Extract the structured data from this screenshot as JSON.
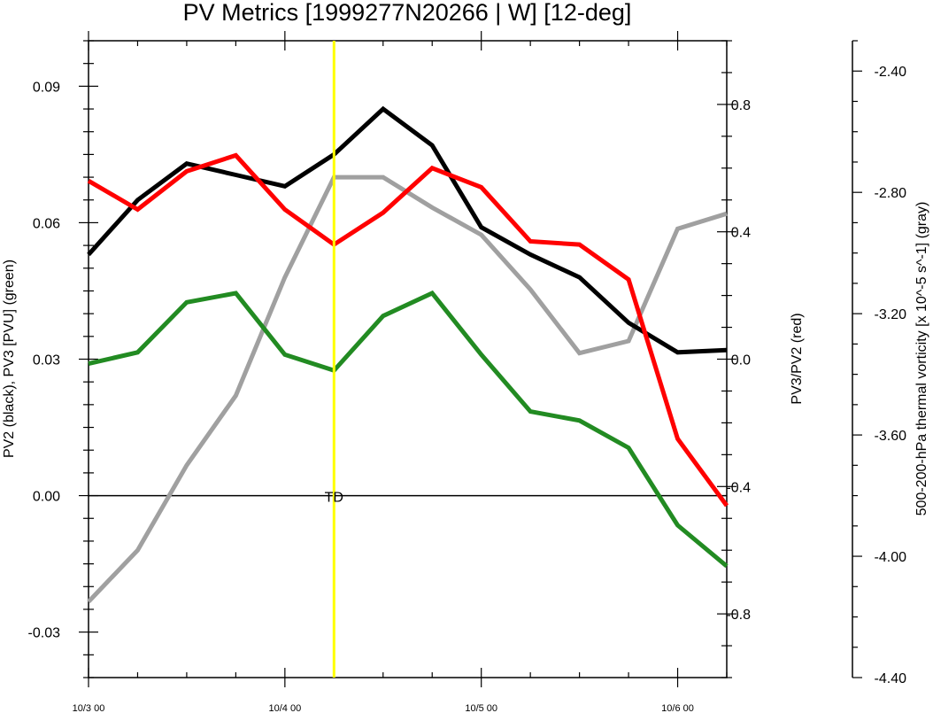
{
  "chart_data": {
    "type": "line",
    "title": "PV Metrics [1999277N20266 | W] [12-deg]",
    "x": {
      "ticks": [
        "10/3 00",
        "10/4 00",
        "10/5 00",
        "10/6 00"
      ],
      "unit_note": "6-hourly steps; 0 = 10/3 00, 4 = 10/4 00, 8 = 10/5 00, 12 = 10/6 00",
      "range": [
        0,
        13
      ]
    },
    "left_axis": {
      "label": "PV2 (black), PV3 [PVU] (green)",
      "range": [
        -0.04,
        0.1
      ],
      "ticks": [
        "-0.03",
        "0.00",
        "0.03",
        "0.06",
        "0.09"
      ],
      "tick_values": [
        -0.03,
        0.0,
        0.03,
        0.06,
        0.09
      ]
    },
    "right_axis": {
      "label": "PV3/PV2 (red)",
      "range": [
        -1.0,
        1.0
      ],
      "ticks": [
        "-0.8",
        "-0.4",
        "0.0",
        "0.4",
        "0.8"
      ],
      "tick_values": [
        -0.8,
        -0.4,
        0.0,
        0.4,
        0.8
      ]
    },
    "far_right_axis": {
      "label": "500-200-hPa thermal vorticity [x 10^-5 s^-1] (gray)",
      "range": [
        -4.4,
        -2.3
      ],
      "ticks": [
        "-4.40",
        "-4.00",
        "-3.60",
        "-3.20",
        "-2.80",
        "-2.40"
      ],
      "tick_values": [
        -4.4,
        -4.0,
        -3.6,
        -3.2,
        -2.8,
        -2.4
      ]
    },
    "series": [
      {
        "name": "PV2",
        "axis": "left",
        "color": "#000000",
        "x": [
          0,
          1,
          2,
          3,
          4,
          5,
          6,
          7,
          8,
          9,
          10,
          11,
          12,
          13
        ],
        "values": [
          0.053,
          0.065,
          0.073,
          0.0705,
          0.068,
          0.075,
          0.085,
          0.077,
          0.059,
          0.053,
          0.048,
          0.038,
          0.0315,
          0.032
        ]
      },
      {
        "name": "PV3",
        "axis": "left",
        "color": "#228b22",
        "x": [
          0,
          1,
          2,
          3,
          4,
          5,
          6,
          7,
          8,
          9,
          10,
          11,
          12,
          13
        ],
        "values": [
          0.029,
          0.0315,
          0.0425,
          0.0445,
          0.031,
          0.0275,
          0.0395,
          0.0445,
          0.031,
          0.0185,
          0.0165,
          0.0105,
          -0.0065,
          -0.0155
        ]
      },
      {
        "name": "PV3/PV2",
        "axis": "right",
        "color": "#ff0000",
        "x": [
          0,
          1,
          2,
          3,
          4,
          5,
          6,
          7,
          8,
          9,
          10,
          11,
          12,
          13
        ],
        "values": [
          0.56,
          0.47,
          0.59,
          0.64,
          0.47,
          0.36,
          0.46,
          0.6,
          0.54,
          0.37,
          0.36,
          0.25,
          -0.25,
          -0.46
        ]
      },
      {
        "name": "thermal vorticity",
        "axis": "far_right",
        "color": "#a0a0a0",
        "x": [
          0,
          1,
          2,
          3,
          4,
          5,
          6,
          7,
          8,
          9,
          10,
          11,
          12,
          13
        ],
        "values": [
          -4.15,
          -3.98,
          -3.7,
          -3.47,
          -3.08,
          -2.75,
          -2.75,
          -2.85,
          -2.94,
          -3.12,
          -3.33,
          -3.29,
          -2.92,
          -2.87
        ]
      }
    ],
    "marker": {
      "x": 5,
      "label": "TD",
      "color": "#ffff00"
    },
    "zero_line": true,
    "grid": false
  }
}
